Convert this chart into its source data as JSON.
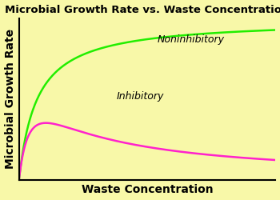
{
  "title": "Microbial Growth Rate vs. Waste Concentration",
  "xlabel": "Waste Concentration",
  "ylabel": "Microbial Growth Rate",
  "background_color": "#f8f8a8",
  "noninhibitory_color": "#22ee00",
  "inhibitory_color": "#ff22cc",
  "noninhibitory_label": "Noninhibitory",
  "inhibitory_label": "Inhibitory",
  "title_fontsize": 9.5,
  "axis_label_fontsize": 10,
  "annotation_fontsize": 9,
  "line_width": 1.8,
  "monod_Ks": 0.07,
  "andrews_Ks": 0.05,
  "andrews_Ki": 0.22,
  "inhibitory_scale": 0.38
}
